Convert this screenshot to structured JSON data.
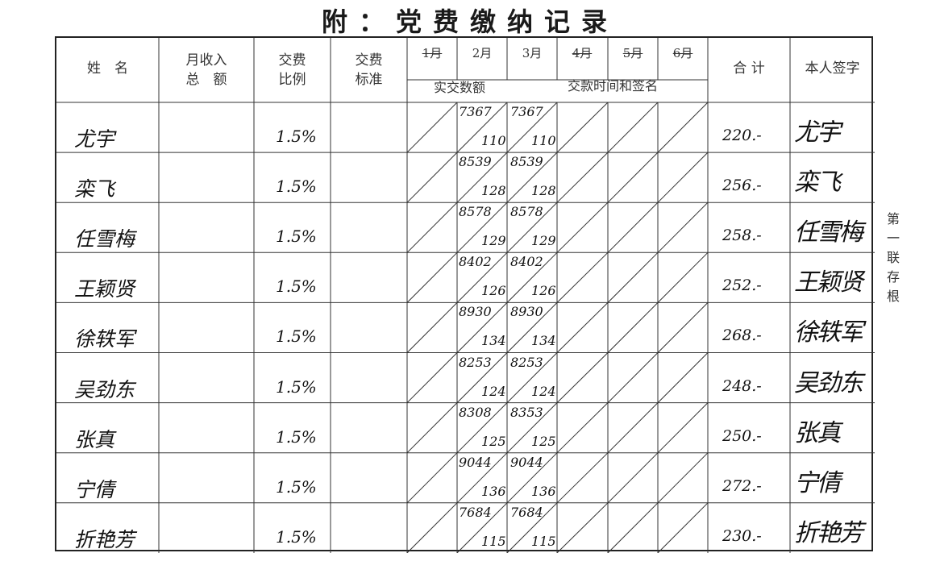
{
  "title": "附：党费缴纳记录",
  "header": {
    "name": "姓　名",
    "income": [
      "月收入",
      "总　额"
    ],
    "ratio": [
      "交费",
      "比例"
    ],
    "standard": [
      "交费",
      "标准"
    ],
    "months": [
      {
        "label": "1月",
        "struck": true
      },
      {
        "label": "2月",
        "struck": false
      },
      {
        "label": "3月",
        "struck": false
      },
      {
        "label": "4月",
        "struck": true
      },
      {
        "label": "5月",
        "struck": true
      },
      {
        "label": "6月",
        "struck": true
      }
    ],
    "paid_amount": "实交数额",
    "pay_time_sign": "交款时间和签名",
    "total": "合 计",
    "signature": "本人签字"
  },
  "rows": [
    {
      "name": "尤宇",
      "ratio": "1.5%",
      "feb": {
        "income": "7367",
        "fee": "110"
      },
      "mar": {
        "income": "7367",
        "fee": "110"
      },
      "total": "220.-",
      "signature": "尤宇"
    },
    {
      "name": "栾飞",
      "ratio": "1.5%",
      "feb": {
        "income": "8539",
        "fee": "128"
      },
      "mar": {
        "income": "8539",
        "fee": "128"
      },
      "total": "256.-",
      "signature": "栾飞"
    },
    {
      "name": "任雪梅",
      "ratio": "1.5%",
      "feb": {
        "income": "8578",
        "fee": "129"
      },
      "mar": {
        "income": "8578",
        "fee": "129"
      },
      "total": "258.-",
      "signature": "任雪梅"
    },
    {
      "name": "王颖贤",
      "ratio": "1.5%",
      "feb": {
        "income": "8402",
        "fee": "126"
      },
      "mar": {
        "income": "8402",
        "fee": "126"
      },
      "total": "252.-",
      "signature": "王颖贤"
    },
    {
      "name": "徐轶军",
      "ratio": "1.5%",
      "feb": {
        "income": "8930",
        "fee": "134"
      },
      "mar": {
        "income": "8930",
        "fee": "134"
      },
      "total": "268.-",
      "signature": "徐轶军"
    },
    {
      "name": "吴劲东",
      "ratio": "1.5%",
      "feb": {
        "income": "8253",
        "fee": "124"
      },
      "mar": {
        "income": "8253",
        "fee": "124"
      },
      "total": "248.-",
      "signature": "吴劲东"
    },
    {
      "name": "张真",
      "ratio": "1.5%",
      "feb": {
        "income": "8308",
        "fee": "125"
      },
      "mar": {
        "income": "8353",
        "fee": "125"
      },
      "total": "250.-",
      "signature": "张真"
    },
    {
      "name": "宁倩",
      "ratio": "1.5%",
      "feb": {
        "income": "9044",
        "fee": "136"
      },
      "mar": {
        "income": "9044",
        "fee": "136"
      },
      "total": "272.-",
      "signature": "宁倩"
    },
    {
      "name": "折艳芳",
      "ratio": "1.5%",
      "feb": {
        "income": "7684",
        "fee": "115"
      },
      "mar": {
        "income": "7684",
        "fee": "115"
      },
      "total": "230.-",
      "signature": "折艳芳"
    }
  ],
  "side_note": "第一联存根"
}
